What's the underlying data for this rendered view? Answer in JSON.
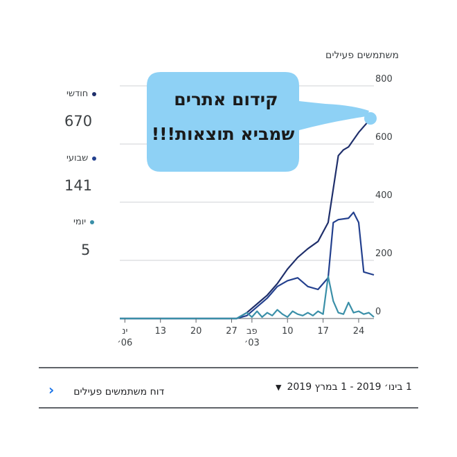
{
  "chart_data": {
    "type": "line",
    "title": "משתמשים פעילים",
    "ylim": [
      0,
      800
    ],
    "y_ticks": [
      "0",
      "200",
      "400",
      "600",
      "800"
    ],
    "x_ticks": [
      {
        "day": 0,
        "lines": [
          "ינ",
          "06׳"
        ]
      },
      {
        "day": 7,
        "lines": [
          "13"
        ]
      },
      {
        "day": 14,
        "lines": [
          "20"
        ]
      },
      {
        "day": 21,
        "lines": [
          "27"
        ]
      },
      {
        "day": 25,
        "lines": [
          "פב",
          "03׳"
        ]
      },
      {
        "day": 32,
        "lines": [
          "10"
        ]
      },
      {
        "day": 39,
        "lines": [
          "17"
        ]
      },
      {
        "day": 46,
        "lines": [
          "24"
        ]
      }
    ],
    "x_range": [
      -1,
      49
    ],
    "series": [
      {
        "name": "חודשי",
        "color": "#1f2f6b",
        "points": [
          [
            -1,
            0
          ],
          [
            22,
            0
          ],
          [
            24,
            20
          ],
          [
            26,
            50
          ],
          [
            28,
            80
          ],
          [
            30,
            120
          ],
          [
            32,
            170
          ],
          [
            34,
            210
          ],
          [
            36,
            240
          ],
          [
            38,
            265
          ],
          [
            40,
            330
          ],
          [
            42,
            560
          ],
          [
            43,
            580
          ],
          [
            44,
            590
          ],
          [
            46,
            640
          ],
          [
            47,
            660
          ],
          [
            49,
            700
          ]
        ]
      },
      {
        "name": "שבועי",
        "color": "#23408e",
        "points": [
          [
            -1,
            0
          ],
          [
            22,
            0
          ],
          [
            24,
            10
          ],
          [
            26,
            40
          ],
          [
            28,
            70
          ],
          [
            30,
            110
          ],
          [
            32,
            130
          ],
          [
            34,
            140
          ],
          [
            36,
            110
          ],
          [
            38,
            100
          ],
          [
            40,
            140
          ],
          [
            41,
            330
          ],
          [
            42,
            340
          ],
          [
            44,
            345
          ],
          [
            45,
            365
          ],
          [
            46,
            330
          ],
          [
            47,
            160
          ],
          [
            49,
            150
          ]
        ]
      },
      {
        "name": "יומי",
        "color": "#3a8fa8",
        "points": [
          [
            -1,
            0
          ],
          [
            22,
            0
          ],
          [
            24,
            20
          ],
          [
            25,
            5
          ],
          [
            26,
            25
          ],
          [
            27,
            5
          ],
          [
            28,
            20
          ],
          [
            29,
            10
          ],
          [
            30,
            30
          ],
          [
            31,
            15
          ],
          [
            32,
            5
          ],
          [
            33,
            25
          ],
          [
            34,
            15
          ],
          [
            35,
            10
          ],
          [
            36,
            20
          ],
          [
            37,
            10
          ],
          [
            38,
            25
          ],
          [
            39,
            15
          ],
          [
            40,
            145
          ],
          [
            41,
            60
          ],
          [
            42,
            20
          ],
          [
            43,
            15
          ],
          [
            44,
            55
          ],
          [
            45,
            20
          ],
          [
            46,
            25
          ],
          [
            47,
            15
          ],
          [
            48,
            20
          ],
          [
            49,
            5
          ]
        ]
      }
    ]
  },
  "legend": [
    {
      "label": "חודשי",
      "value": "670",
      "color": "#1f2f6b"
    },
    {
      "label": "שבועי",
      "value": "141",
      "color": "#23408e"
    },
    {
      "label": "יומי",
      "value": "5",
      "color": "#3a8fa8"
    }
  ],
  "bubble": {
    "lines": [
      "קידום אתרים",
      "שמביא תוצאות!!!"
    ],
    "color": "#8ed1f5"
  },
  "footer": {
    "date_range": "1 בינו׳ 2019 - 1 במרץ 2019",
    "report_link": "דוח משתמשים פעילים"
  }
}
